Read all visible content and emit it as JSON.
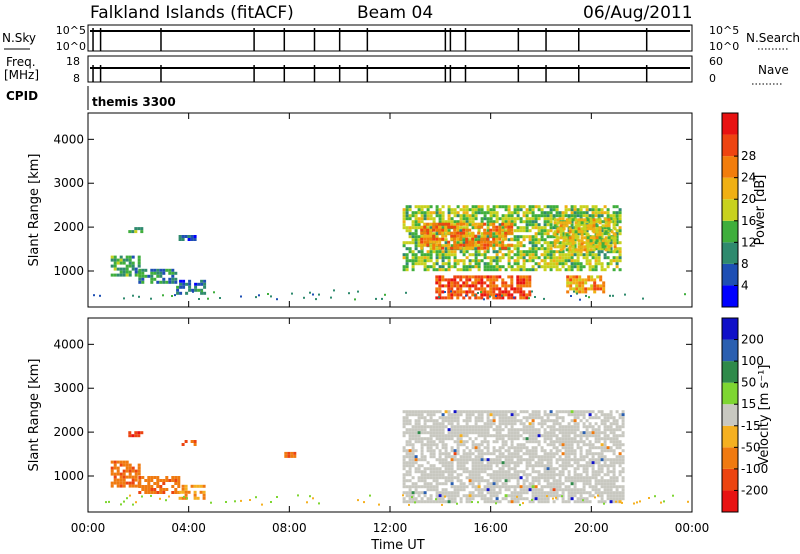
{
  "header": {
    "title": "Falkland Islands (fitACF)",
    "beam": "Beam 04",
    "date": "06/Aug/2011"
  },
  "status_panels": {
    "nsky_label": "N.Sky",
    "nsky_ticks": [
      "10^5",
      "10^0"
    ],
    "nsearch_label": "N.Search",
    "nsearch_ticks": [
      "10^5",
      "10^0"
    ],
    "freq_label_line1": "Freq.",
    "freq_label_line2": "[MHz]",
    "freq_ticks": [
      "18",
      "8"
    ],
    "nave_label": "Nave",
    "nave_ticks": [
      "60",
      "0"
    ],
    "cpid_label": "CPID",
    "cpid_value": "themis 3300"
  },
  "chart_data": [
    {
      "type": "heatmap",
      "title": "",
      "xlabel": "Time UT",
      "ylabel": "Slant Range [km]",
      "x_ticks": [
        "00:00",
        "04:00",
        "08:00",
        "12:00",
        "16:00",
        "20:00",
        "00:00"
      ],
      "y_ticks": [
        1000,
        2000,
        3000,
        4000
      ],
      "xlim_hours": [
        0,
        24
      ],
      "ylim_km": [
        180,
        4600
      ],
      "colorbar": {
        "label": "Power [dB]",
        "ticks": [
          "4",
          "8",
          "12",
          "16",
          "20",
          "24",
          "28"
        ],
        "colors": [
          "#0000ff",
          "#1e4fb4",
          "#2f8a6e",
          "#3fae3c",
          "#c8d21e",
          "#f0b014",
          "#f27d0c",
          "#ee4411",
          "#e81212"
        ]
      },
      "regions": [
        {
          "t0": 0.9,
          "t1": 2.0,
          "r0": 900,
          "r1": 1350,
          "value": 12
        },
        {
          "t0": 2.0,
          "t1": 3.5,
          "r0": 750,
          "r1": 1050,
          "value": 10
        },
        {
          "t0": 3.5,
          "t1": 4.6,
          "r0": 500,
          "r1": 800,
          "value": 8
        },
        {
          "t0": 1.6,
          "t1": 2.1,
          "r0": 1900,
          "r1": 2000,
          "value": 14
        },
        {
          "t0": 3.6,
          "t1": 4.3,
          "r0": 1700,
          "r1": 1820,
          "value": 6
        },
        {
          "t0": 12.5,
          "t1": 21.2,
          "r0": 1000,
          "r1": 2500,
          "value": 16
        },
        {
          "t0": 13.2,
          "t1": 16.8,
          "r0": 1500,
          "r1": 2100,
          "value": 26
        },
        {
          "t0": 13.8,
          "t1": 17.5,
          "r0": 400,
          "r1": 900,
          "value": 29
        },
        {
          "t0": 19.0,
          "t1": 20.5,
          "r0": 500,
          "r1": 900,
          "value": 24
        },
        {
          "t0": 18.5,
          "t1": 21.0,
          "r0": 1500,
          "r1": 2200,
          "value": 20
        }
      ]
    },
    {
      "type": "heatmap",
      "title": "",
      "xlabel": "Time UT",
      "ylabel": "Slant Range [km]",
      "x_ticks": [
        "00:00",
        "04:00",
        "08:00",
        "12:00",
        "16:00",
        "20:00",
        "00:00"
      ],
      "y_ticks": [
        1000,
        2000,
        3000,
        4000
      ],
      "xlim_hours": [
        0,
        24
      ],
      "ylim_km": [
        180,
        4600
      ],
      "colorbar": {
        "label": "Velocity [m s⁻¹]",
        "ticks": [
          "200",
          "100",
          "50",
          "15",
          "-15",
          "-50",
          "-100",
          "-200"
        ],
        "colors": [
          "#1010c8",
          "#2a5fb0",
          "#2f8a4a",
          "#7ed632",
          "#c8c8c0",
          "#f5b020",
          "#f07a10",
          "#ec4410",
          "#e81212"
        ]
      },
      "regions": [
        {
          "t0": 0.9,
          "t1": 2.0,
          "r0": 800,
          "r1": 1350,
          "value": -80
        },
        {
          "t0": 2.0,
          "t1": 3.6,
          "r0": 600,
          "r1": 1000,
          "value": -80
        },
        {
          "t0": 3.6,
          "t1": 4.6,
          "r0": 500,
          "r1": 800,
          "value": -50
        },
        {
          "t0": 1.6,
          "t1": 2.1,
          "r0": 1900,
          "r1": 2020,
          "value": -200
        },
        {
          "t0": 3.6,
          "t1": 4.3,
          "r0": 1700,
          "r1": 1820,
          "value": -120
        },
        {
          "t0": 7.8,
          "t1": 8.2,
          "r0": 1450,
          "r1": 1550,
          "value": -100
        },
        {
          "t0": 12.5,
          "t1": 21.3,
          "r0": 400,
          "r1": 2500,
          "value": 0
        }
      ]
    }
  ]
}
